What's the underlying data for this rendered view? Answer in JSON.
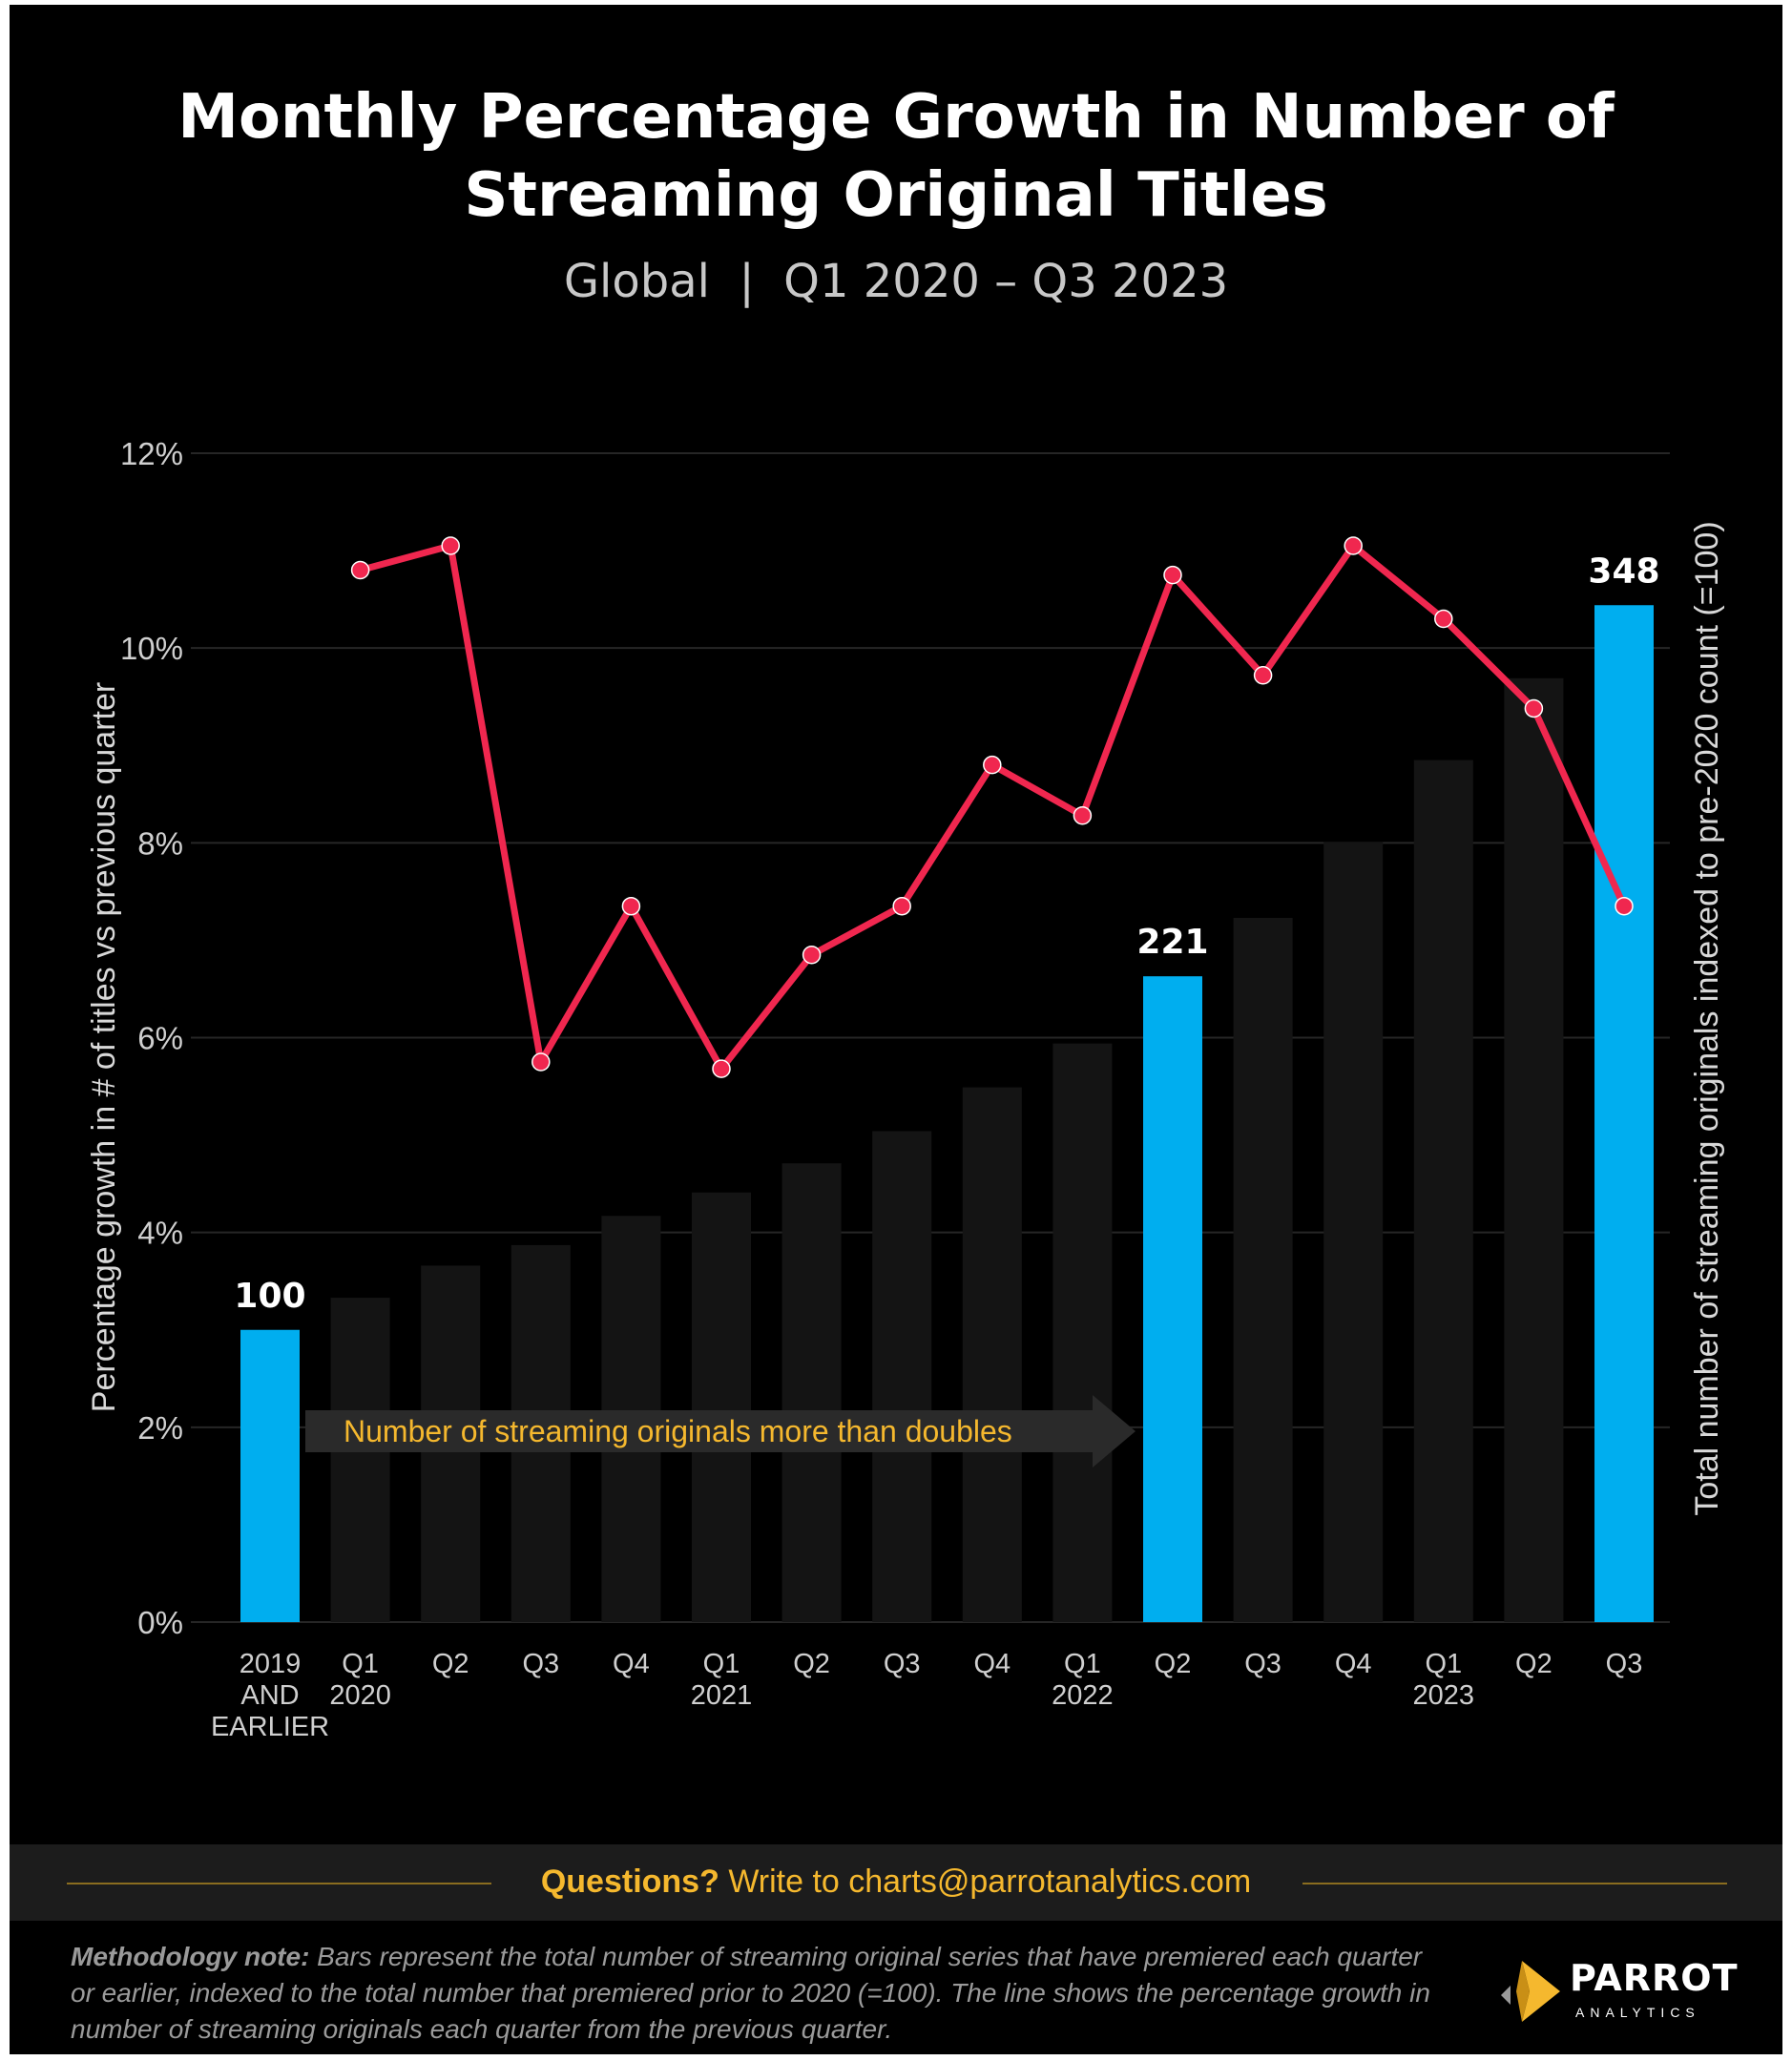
{
  "header": {
    "title_line1": "Monthly Percentage Growth in Number of",
    "title_line2": "Streaming Original Titles",
    "subtitle": "Global  |  Q1 2020 – Q3 2023"
  },
  "chart_data": {
    "type": "bar",
    "title": "Monthly Percentage Growth in Number of Streaming Original Titles",
    "subtitle": "Global | Q1 2020 – Q3 2023",
    "categories": [
      [
        "2019",
        "AND",
        "EARLIER"
      ],
      [
        "Q1",
        "2020"
      ],
      [
        "Q2"
      ],
      [
        "Q3"
      ],
      [
        "Q4"
      ],
      [
        "Q1",
        "2021"
      ],
      [
        "Q2"
      ],
      [
        "Q3"
      ],
      [
        "Q4"
      ],
      [
        "Q1",
        "2022"
      ],
      [
        "Q2"
      ],
      [
        "Q3"
      ],
      [
        "Q4"
      ],
      [
        "Q1",
        "2023"
      ],
      [
        "Q2"
      ],
      [
        "Q3"
      ]
    ],
    "left_axis": {
      "label": "Percentage growth in # of titles vs previous quarter",
      "ylim": [
        0,
        12
      ],
      "ticks": [
        0,
        2,
        4,
        6,
        8,
        10,
        12
      ],
      "tick_labels": [
        "0%",
        "2%",
        "4%",
        "6%",
        "8%",
        "10%",
        "12%"
      ]
    },
    "right_axis": {
      "label": "Total number of streaming originals indexed to pre-2020 count (=100)",
      "ylim": [
        0,
        400
      ]
    },
    "bars": {
      "values": [
        100,
        111,
        122,
        129,
        139,
        147,
        157,
        168,
        183,
        198,
        221,
        241,
        267,
        295,
        323,
        348
      ],
      "highlight_indices": [
        0,
        10,
        15
      ],
      "data_labels": [
        "100",
        "",
        "",
        "",
        "",
        "",
        "",
        "",
        "",
        "",
        "221",
        "",
        "",
        "",
        "",
        "348"
      ],
      "highlight_color": "#00aeef",
      "base_color": "#141414"
    },
    "line": {
      "values": [
        null,
        10.8,
        11.05,
        5.75,
        7.35,
        5.68,
        6.85,
        7.35,
        8.8,
        8.28,
        10.75,
        9.72,
        11.05,
        10.3,
        9.38,
        7.35
      ],
      "color": "#f0274f"
    },
    "annotation": {
      "text": "Number of streaming originals more than doubles",
      "color": "#f5b82e"
    },
    "grid": true,
    "legend": "none"
  },
  "footer": {
    "questions_bold": "Questions?",
    "questions_text": " Write to charts@parrotanalytics.com",
    "method_bold": "Methodology note:",
    "method_text": " Bars represent the total number of streaming original series that have premiered each quarter or earlier, indexed to the total number that premiered prior to 2020 (=100).  The line shows the percentage growth in number of streaming originals each quarter from the previous quarter."
  },
  "logo": {
    "word": "PARROT",
    "sub": "ANALYTICS"
  }
}
